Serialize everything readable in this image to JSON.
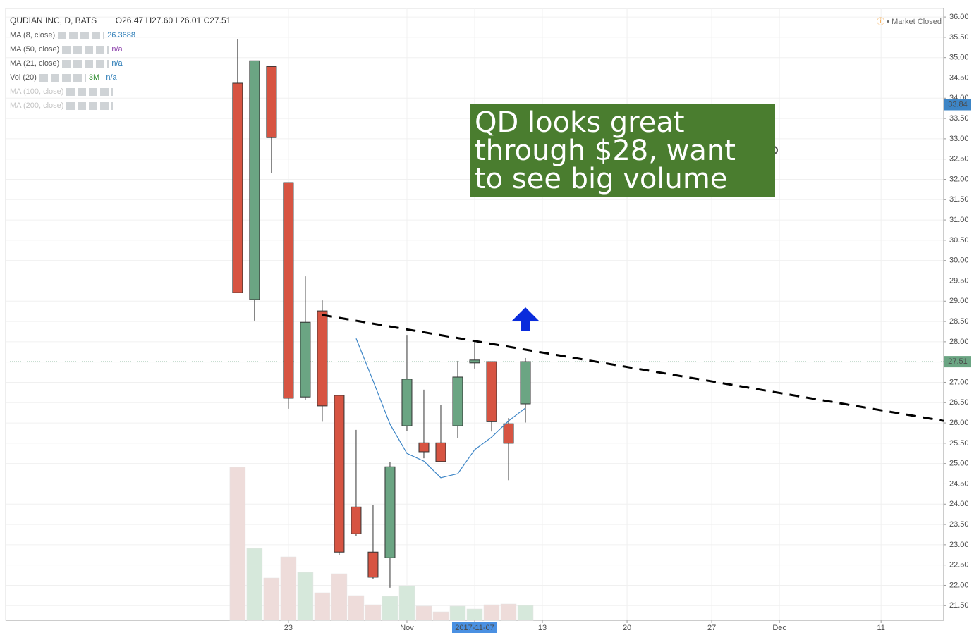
{
  "chart_data": {
    "type": "candlestick",
    "title": "QUDIAN INC, D, BATS",
    "ohlc_labels": [
      "O26.47",
      "H27.60",
      "L26.01",
      "C27.51"
    ],
    "status": "Market Closed",
    "indicators": [
      {
        "name": "MA (8, close)",
        "value": "26.3688"
      },
      {
        "name": "MA (50, close)",
        "value": "n/a"
      },
      {
        "name": "MA (21, close)",
        "value": "n/a"
      },
      {
        "name": "Vol (20)",
        "value": "3M",
        "value2": "n/a"
      },
      {
        "name": "MA (100, close)"
      },
      {
        "name": "MA (200, close)"
      }
    ],
    "x": [
      0,
      1,
      2,
      3,
      4,
      5,
      6,
      7,
      8,
      9,
      10,
      11,
      12,
      13,
      14,
      15,
      16,
      17
    ],
    "open": [
      34.37,
      29.04,
      34.78,
      31.92,
      26.64,
      28.76,
      26.68,
      23.93,
      22.82,
      22.68,
      25.93,
      25.51,
      25.51,
      25.93,
      27.48,
      27.51,
      25.98,
      26.47
    ],
    "high": [
      35.46,
      34.92,
      34.78,
      31.92,
      29.61,
      29.02,
      26.68,
      25.83,
      23.97,
      25.03,
      28.17,
      26.82,
      26.45,
      27.53,
      28.03,
      27.51,
      26.12,
      27.6
    ],
    "low": [
      29.21,
      28.52,
      32.16,
      26.35,
      26.56,
      26.03,
      22.75,
      23.22,
      22.15,
      21.94,
      25.81,
      25.13,
      25.05,
      25.63,
      27.34,
      25.79,
      24.59,
      26.01
    ],
    "close": [
      29.21,
      34.92,
      33.03,
      26.61,
      28.48,
      26.42,
      22.82,
      23.27,
      22.2,
      24.92,
      27.08,
      25.29,
      25.05,
      27.13,
      27.55,
      26.03,
      25.5,
      27.51
    ],
    "volume": [
      21.7,
      10.2,
      6.0,
      9.0,
      6.8,
      3.9,
      6.6,
      3.5,
      2.2,
      3.4,
      4.9,
      2.0,
      1.2,
      2.0,
      1.6,
      2.2,
      2.3,
      2.1
    ],
    "volume_lim": [
      0,
      86.8
    ],
    "up_color": "#6ba583",
    "down_color": "#d75442",
    "volume_up_color": "#d6e8db",
    "volume_down_color": "#eedcda",
    "ma": {
      "name": "MA (8, close)",
      "color": "#3d85c6",
      "values": [
        null,
        null,
        null,
        null,
        null,
        null,
        null,
        28.08,
        27.04,
        25.97,
        25.25,
        25.06,
        24.65,
        24.75,
        25.34,
        25.65,
        26.05,
        26.3688
      ]
    },
    "trendline": {
      "x": [
        5,
        41.7
      ],
      "y": [
        28.66,
        26.05
      ]
    },
    "annotation": "QD looks great through $28, want to see big volume",
    "price_markers": [
      {
        "value": 33.84,
        "label": "33.84",
        "color": "#3d85c6"
      },
      {
        "value": 27.51,
        "label": "27.51",
        "color": "#6ba583"
      }
    ],
    "xlim": [
      -13.7,
      41.7
    ],
    "xticks": [
      {
        "value": 3,
        "label": "23"
      },
      {
        "value": 10,
        "label": "Nov"
      },
      {
        "value": 14,
        "label": "2017-11-07"
      },
      {
        "value": 18,
        "label": "13"
      },
      {
        "value": 23,
        "label": "20"
      },
      {
        "value": 28,
        "label": "27"
      },
      {
        "value": 32,
        "label": "Dec"
      },
      {
        "value": 38,
        "label": "11"
      }
    ],
    "highlight_xtick": 2,
    "ylim": [
      21.14,
      36.21
    ],
    "yticks": [
      {
        "value": 21.5,
        "label": "21.50"
      },
      {
        "value": 22,
        "label": "22.00"
      },
      {
        "value": 22.5,
        "label": "22.50"
      },
      {
        "value": 23,
        "label": "23.00"
      },
      {
        "value": 23.5,
        "label": "23.50"
      },
      {
        "value": 24,
        "label": "24.00"
      },
      {
        "value": 24.5,
        "label": "24.50"
      },
      {
        "value": 25,
        "label": "25.00"
      },
      {
        "value": 25.5,
        "label": "25.50"
      },
      {
        "value": 26,
        "label": "26.00"
      },
      {
        "value": 26.5,
        "label": "26.50"
      },
      {
        "value": 27,
        "label": "27.00"
      },
      {
        "value": 27.5,
        "label": "27.50"
      },
      {
        "value": 28,
        "label": "28.00"
      },
      {
        "value": 28.5,
        "label": "28.50"
      },
      {
        "value": 29,
        "label": "29.00"
      },
      {
        "value": 29.5,
        "label": "29.50"
      },
      {
        "value": 30,
        "label": "30.00"
      },
      {
        "value": 30.5,
        "label": "30.50"
      },
      {
        "value": 31,
        "label": "31.00"
      },
      {
        "value": 31.5,
        "label": "31.50"
      },
      {
        "value": 32,
        "label": "32.00"
      },
      {
        "value": 32.5,
        "label": "32.50"
      },
      {
        "value": 33,
        "label": "33.00"
      },
      {
        "value": 33.5,
        "label": "33.50"
      },
      {
        "value": 34,
        "label": "34.00"
      },
      {
        "value": 34.5,
        "label": "34.50"
      },
      {
        "value": 35,
        "label": "35.00"
      },
      {
        "value": 35.5,
        "label": "35.50"
      },
      {
        "value": 36,
        "label": "36.00"
      }
    ],
    "grid": true
  }
}
